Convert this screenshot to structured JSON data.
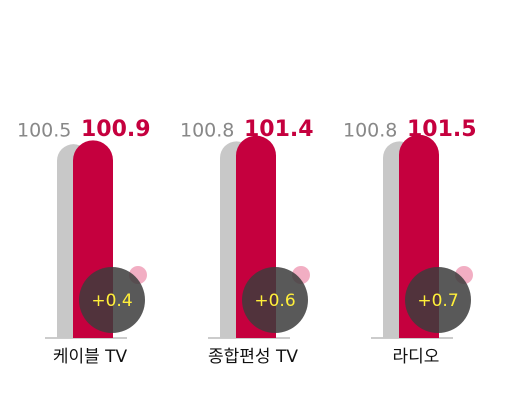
{
  "chart_data": {
    "type": "bar",
    "categories": [
      "케이블 TV",
      "종합편성 TV",
      "라디오"
    ],
    "series": [
      {
        "color": "#c8c8c8",
        "values": [
          100.5,
          100.8,
          100.8
        ]
      },
      {
        "color": "#c5003e",
        "values": [
          100.9,
          101.4,
          101.5
        ]
      }
    ],
    "diff": {
      "color": "#3c3c3c",
      "values": [
        0.4,
        0.6,
        0.7
      ],
      "value_labels": [
        "+0.4",
        "+0.6",
        "+0.7"
      ]
    },
    "ylim": [
      80,
      102
    ]
  }
}
